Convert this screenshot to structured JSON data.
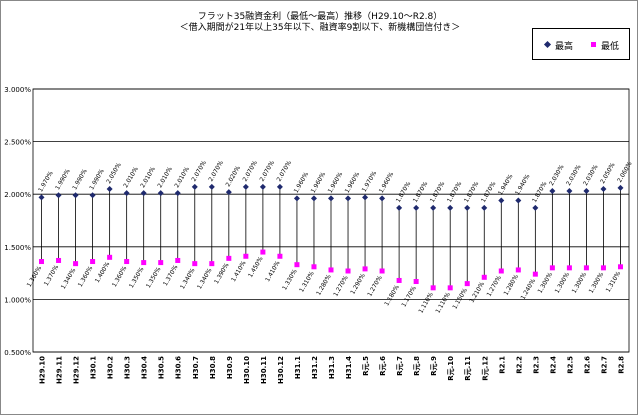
{
  "chart_data": {
    "type": "line",
    "title": "フラット35融資金利（最低～最高）推移（H29.10～R2.8）",
    "subtitle": "＜借入期間が21年以上35年以下、融資率9割以下、新機構団信付き＞",
    "ylim": [
      0.005,
      0.03
    ],
    "y_ticks": [
      "0.500%",
      "1.000%",
      "1.500%",
      "2.000%",
      "2.500%",
      "3.000%"
    ],
    "categories": [
      "H29.10",
      "H29.11",
      "H29.12",
      "H30.1",
      "H30.2",
      "H30.3",
      "H30.4",
      "H30.5",
      "H30.6",
      "H30.7",
      "H30.8",
      "H30.9",
      "H30.10",
      "H30.11",
      "H30.12",
      "H31.1",
      "H31.2",
      "H31.3",
      "H31.4",
      "R元.5",
      "R元.6",
      "R元.7",
      "R元.8",
      "R元.9",
      "R元.10",
      "R元.11",
      "R元.12",
      "R2.1",
      "R2.2",
      "R2.3",
      "R2.4",
      "R2.5",
      "R2.6",
      "R2.7",
      "R2.8"
    ],
    "series": [
      {
        "name": "最高",
        "color": "#1f2a6e",
        "marker": "diamond",
        "values": [
          1.97,
          1.99,
          1.99,
          1.99,
          2.05,
          2.01,
          2.01,
          2.01,
          2.01,
          2.07,
          2.07,
          2.02,
          2.07,
          2.07,
          2.07,
          1.96,
          1.96,
          1.96,
          1.96,
          1.97,
          1.96,
          1.87,
          1.87,
          1.87,
          1.87,
          1.87,
          1.87,
          1.94,
          1.94,
          1.87,
          2.03,
          2.03,
          2.03,
          2.05,
          2.06
        ],
        "value_labels": [
          "1.970%",
          "1.990%",
          "1.990%",
          "1.990%",
          "2.050%",
          "2.010%",
          "2.010%",
          "2.010%",
          "2.010%",
          "2.070%",
          "2.070%",
          "2.020%",
          "2.070%",
          "2.070%",
          "2.070%",
          "1.960%",
          "1.960%",
          "1.960%",
          "1.960%",
          "1.970%",
          "1.960%",
          "1.870%",
          "1.870%",
          "1.870%",
          "1.870%",
          "1.870%",
          "1.870%",
          "1.940%",
          "1.940%",
          "1.870%",
          "2.030%",
          "2.030%",
          "2.030%",
          "2.050%",
          "2.060%"
        ]
      },
      {
        "name": "最低",
        "color": "#ff00ff",
        "marker": "square",
        "values": [
          1.36,
          1.37,
          1.34,
          1.36,
          1.4,
          1.36,
          1.35,
          1.35,
          1.37,
          1.34,
          1.34,
          1.39,
          1.41,
          1.45,
          1.41,
          1.33,
          1.31,
          1.28,
          1.27,
          1.29,
          1.27,
          1.18,
          1.17,
          1.11,
          1.11,
          1.15,
          1.21,
          1.27,
          1.28,
          1.24,
          1.3,
          1.3,
          1.3,
          1.3,
          1.31
        ],
        "value_labels": [
          "1.360%",
          "1.370%",
          "1.340%",
          "1.360%",
          "1.400%",
          "1.360%",
          "1.350%",
          "1.350%",
          "1.370%",
          "1.340%",
          "1.340%",
          "1.390%",
          "1.410%",
          "1.450%",
          "1.410%",
          "1.330%",
          "1.310%",
          "1.280%",
          "1.270%",
          "1.290%",
          "1.270%",
          "1.180%",
          "1.170%",
          "1.110%",
          "1.110%",
          "1.150%",
          "1.210%",
          "1.270%",
          "1.280%",
          "1.240%",
          "1.300%",
          "1.300%",
          "1.300%",
          "1.300%",
          "1.310%"
        ]
      }
    ],
    "legend_position": "top-right",
    "grid": true
  }
}
